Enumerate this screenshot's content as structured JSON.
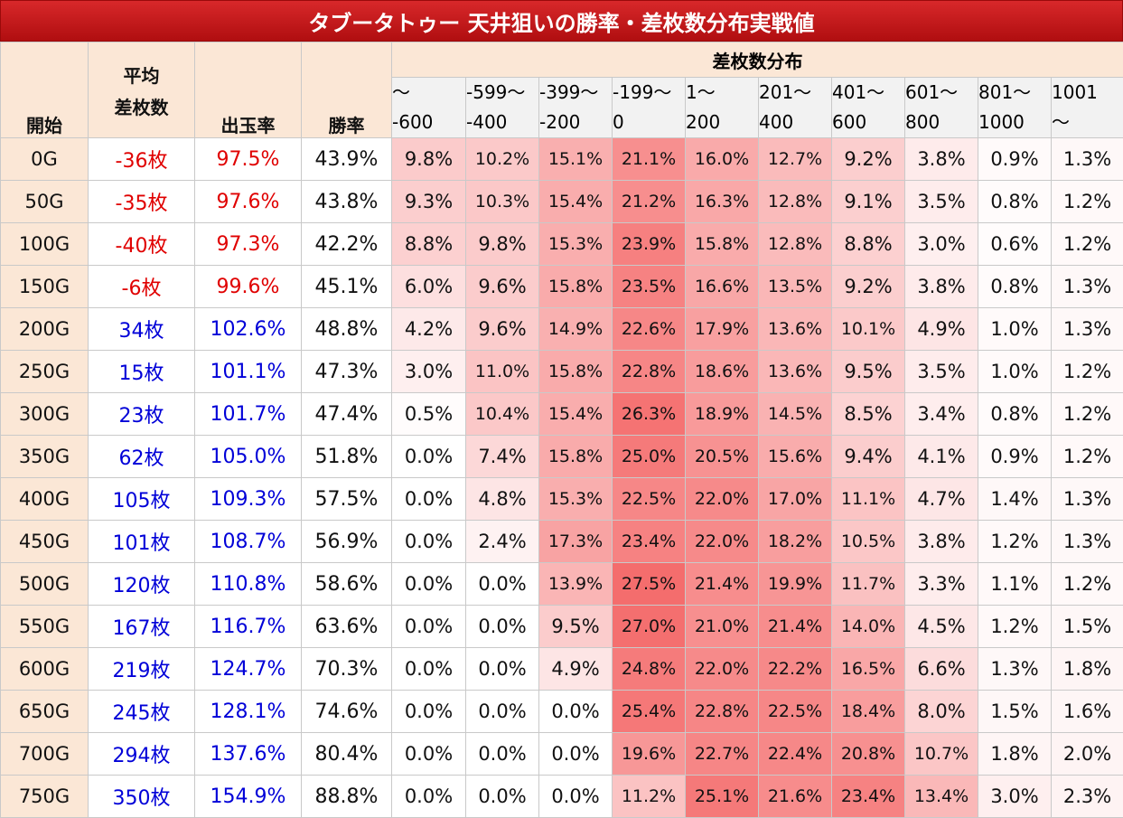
{
  "title": "タブータトゥー 天井狙いの勝率・差枚数分布実戦値",
  "headers": {
    "start": "開始",
    "avg_line1": "平均",
    "avg_line2": "差枚数",
    "payout": "出玉率",
    "win": "勝率",
    "dist": "差枚数分布"
  },
  "buckets": [
    {
      "l1": "～",
      "l2": "-600"
    },
    {
      "l1": "-599～",
      "l2": "-400"
    },
    {
      "l1": "-399～",
      "l2": "-200"
    },
    {
      "l1": "-199～",
      "l2": "0"
    },
    {
      "l1": "1～",
      "l2": "200"
    },
    {
      "l1": "201～",
      "l2": "400"
    },
    {
      "l1": "401～",
      "l2": "600"
    },
    {
      "l1": "601～",
      "l2": "800"
    },
    {
      "l1": "801～",
      "l2": "1000"
    },
    {
      "l1": "1001",
      "l2": "～"
    }
  ],
  "colors": {
    "negative": "#e00000",
    "positive": "#0000d8",
    "header_bg": "#fbe7d6",
    "title_bg": "#c41a1c",
    "heat_max": "#f46a6a"
  },
  "rows": [
    {
      "start": "0G",
      "avg": "-36枚",
      "rate": "97.5%",
      "win": "43.9%",
      "sign": "neg",
      "dist": [
        "9.8%",
        "10.2%",
        "15.1%",
        "21.1%",
        "16.0%",
        "12.7%",
        "9.2%",
        "3.8%",
        "0.9%",
        "1.3%"
      ]
    },
    {
      "start": "50G",
      "avg": "-35枚",
      "rate": "97.6%",
      "win": "43.8%",
      "sign": "neg",
      "dist": [
        "9.3%",
        "10.3%",
        "15.4%",
        "21.2%",
        "16.3%",
        "12.8%",
        "9.1%",
        "3.5%",
        "0.8%",
        "1.2%"
      ]
    },
    {
      "start": "100G",
      "avg": "-40枚",
      "rate": "97.3%",
      "win": "42.2%",
      "sign": "neg",
      "dist": [
        "8.8%",
        "9.8%",
        "15.3%",
        "23.9%",
        "15.8%",
        "12.8%",
        "8.8%",
        "3.0%",
        "0.6%",
        "1.2%"
      ]
    },
    {
      "start": "150G",
      "avg": "-6枚",
      "rate": "99.6%",
      "win": "45.1%",
      "sign": "neg",
      "dist": [
        "6.0%",
        "9.6%",
        "15.8%",
        "23.5%",
        "16.6%",
        "13.5%",
        "9.2%",
        "3.8%",
        "0.8%",
        "1.3%"
      ]
    },
    {
      "start": "200G",
      "avg": "34枚",
      "rate": "102.6%",
      "win": "48.8%",
      "sign": "pos",
      "dist": [
        "4.2%",
        "9.6%",
        "14.9%",
        "22.6%",
        "17.9%",
        "13.6%",
        "10.1%",
        "4.9%",
        "1.0%",
        "1.3%"
      ]
    },
    {
      "start": "250G",
      "avg": "15枚",
      "rate": "101.1%",
      "win": "47.3%",
      "sign": "pos",
      "dist": [
        "3.0%",
        "11.0%",
        "15.8%",
        "22.8%",
        "18.6%",
        "13.6%",
        "9.5%",
        "3.5%",
        "1.0%",
        "1.2%"
      ]
    },
    {
      "start": "300G",
      "avg": "23枚",
      "rate": "101.7%",
      "win": "47.4%",
      "sign": "pos",
      "dist": [
        "0.5%",
        "10.4%",
        "15.4%",
        "26.3%",
        "18.9%",
        "14.5%",
        "8.5%",
        "3.4%",
        "0.8%",
        "1.2%"
      ]
    },
    {
      "start": "350G",
      "avg": "62枚",
      "rate": "105.0%",
      "win": "51.8%",
      "sign": "pos",
      "dist": [
        "0.0%",
        "7.4%",
        "15.8%",
        "25.0%",
        "20.5%",
        "15.6%",
        "9.4%",
        "4.1%",
        "0.9%",
        "1.2%"
      ]
    },
    {
      "start": "400G",
      "avg": "105枚",
      "rate": "109.3%",
      "win": "57.5%",
      "sign": "pos",
      "dist": [
        "0.0%",
        "4.8%",
        "15.3%",
        "22.5%",
        "22.0%",
        "17.0%",
        "11.1%",
        "4.7%",
        "1.4%",
        "1.3%"
      ]
    },
    {
      "start": "450G",
      "avg": "101枚",
      "rate": "108.7%",
      "win": "56.9%",
      "sign": "pos",
      "dist": [
        "0.0%",
        "2.4%",
        "17.3%",
        "23.4%",
        "22.0%",
        "18.2%",
        "10.5%",
        "3.8%",
        "1.2%",
        "1.3%"
      ]
    },
    {
      "start": "500G",
      "avg": "120枚",
      "rate": "110.8%",
      "win": "58.6%",
      "sign": "pos",
      "dist": [
        "0.0%",
        "0.0%",
        "13.9%",
        "27.5%",
        "21.4%",
        "19.9%",
        "11.7%",
        "3.3%",
        "1.1%",
        "1.2%"
      ]
    },
    {
      "start": "550G",
      "avg": "167枚",
      "rate": "116.7%",
      "win": "63.6%",
      "sign": "pos",
      "dist": [
        "0.0%",
        "0.0%",
        "9.5%",
        "27.0%",
        "21.0%",
        "21.4%",
        "14.0%",
        "4.5%",
        "1.2%",
        "1.5%"
      ]
    },
    {
      "start": "600G",
      "avg": "219枚",
      "rate": "124.7%",
      "win": "70.3%",
      "sign": "pos",
      "dist": [
        "0.0%",
        "0.0%",
        "4.9%",
        "24.8%",
        "22.0%",
        "22.2%",
        "16.5%",
        "6.6%",
        "1.3%",
        "1.8%"
      ]
    },
    {
      "start": "650G",
      "avg": "245枚",
      "rate": "128.1%",
      "win": "74.6%",
      "sign": "pos",
      "dist": [
        "0.0%",
        "0.0%",
        "0.0%",
        "25.4%",
        "22.8%",
        "22.5%",
        "18.4%",
        "8.0%",
        "1.5%",
        "1.6%"
      ]
    },
    {
      "start": "700G",
      "avg": "294枚",
      "rate": "137.6%",
      "win": "80.4%",
      "sign": "pos",
      "dist": [
        "0.0%",
        "0.0%",
        "0.0%",
        "19.6%",
        "22.7%",
        "22.4%",
        "20.8%",
        "10.7%",
        "1.8%",
        "2.0%"
      ]
    },
    {
      "start": "750G",
      "avg": "350枚",
      "rate": "154.9%",
      "win": "88.8%",
      "sign": "pos",
      "dist": [
        "0.0%",
        "0.0%",
        "0.0%",
        "11.2%",
        "25.1%",
        "21.6%",
        "23.4%",
        "13.4%",
        "3.0%",
        "2.3%"
      ]
    }
  ]
}
